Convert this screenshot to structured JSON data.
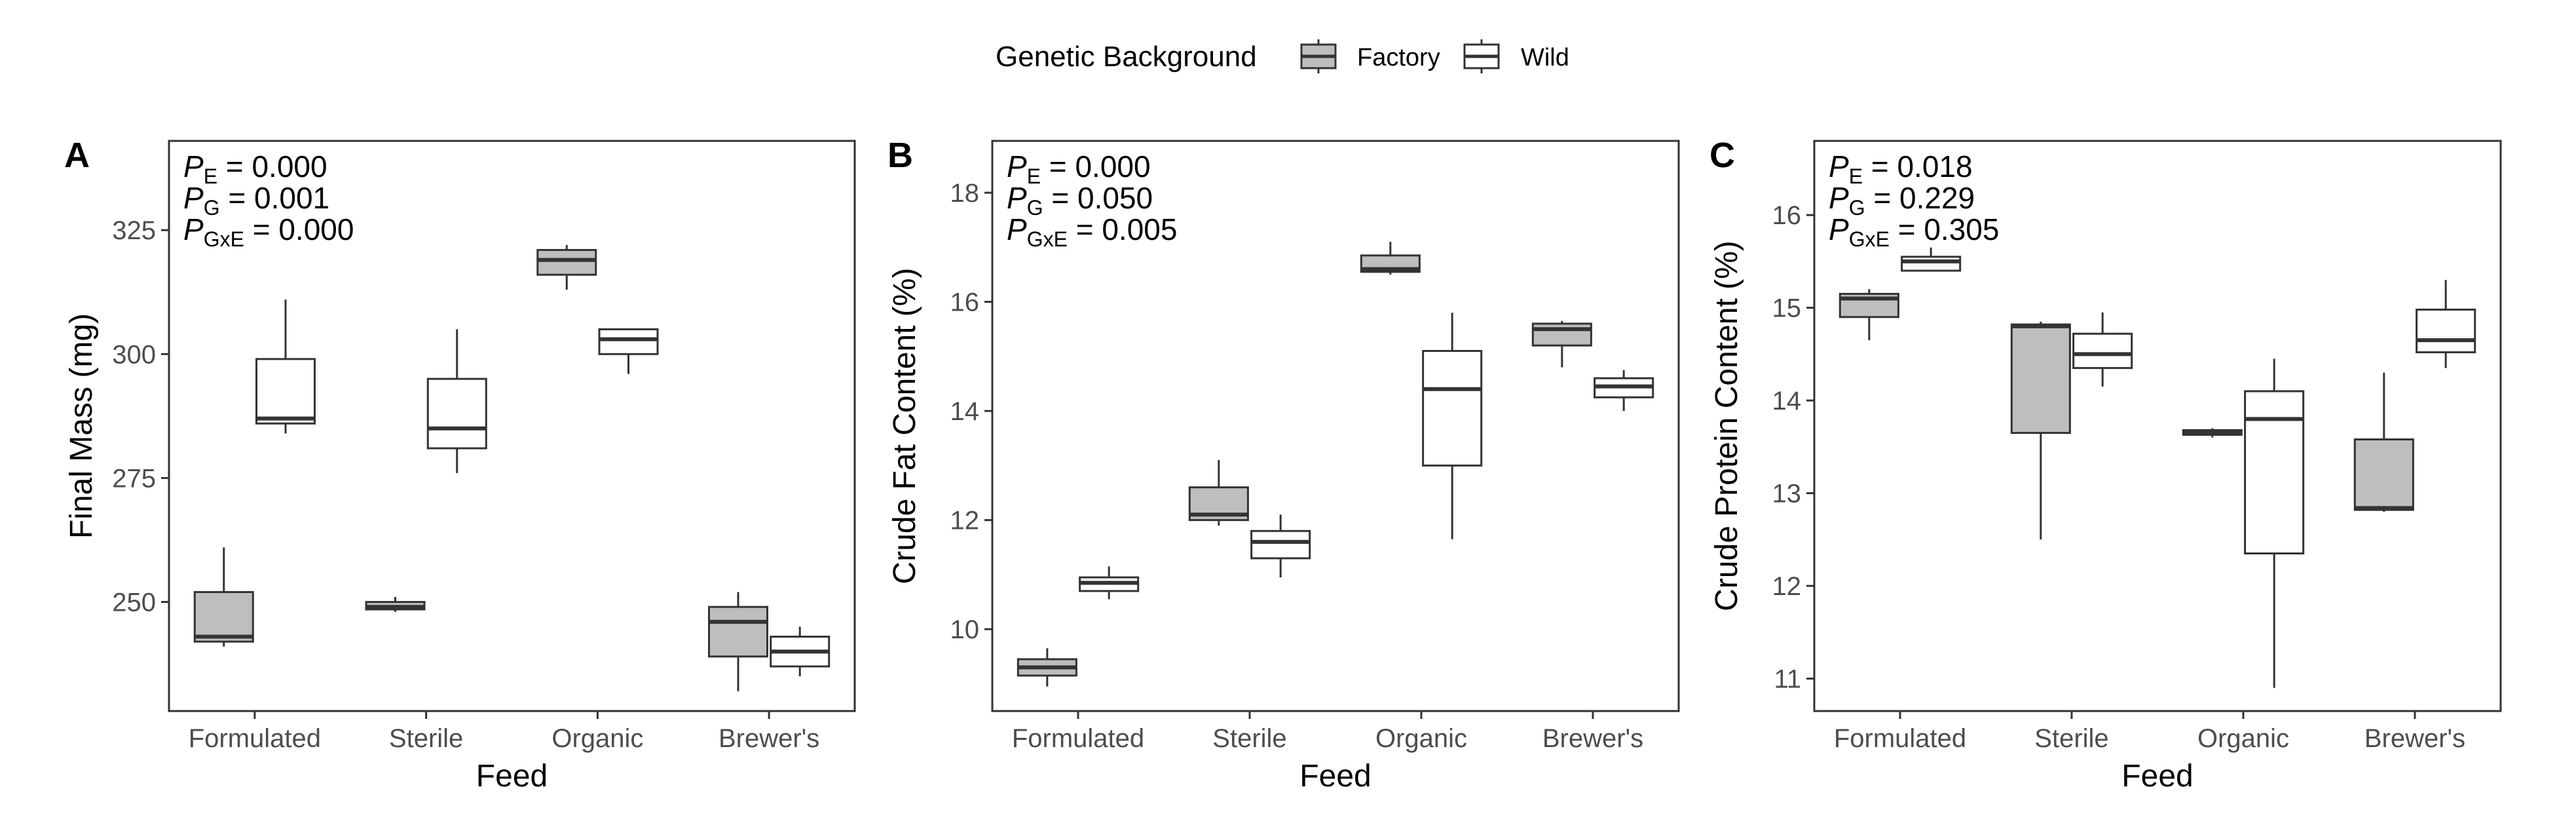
{
  "legend": {
    "title": "Genetic Background",
    "items": [
      {
        "label": "Factory",
        "fill": "#bebebe"
      },
      {
        "label": "Wild",
        "fill": "#ffffff"
      }
    ]
  },
  "chart_data": [
    {
      "type": "box",
      "panel": "A",
      "xlabel": "Feed",
      "ylabel": "Final Mass (mg)",
      "ylim": [
        228,
        343
      ],
      "yticks": [
        250,
        275,
        300,
        325
      ],
      "categories": [
        "Formulated",
        "Sterile",
        "Organic",
        "Brewer's"
      ],
      "pvalues": [
        {
          "p": "P",
          "sub": "E",
          "value": " = 0.000"
        },
        {
          "p": "P",
          "sub": "G",
          "value": " = 0.001"
        },
        {
          "p": "P",
          "sub": "GxE",
          "value": " = 0.000"
        }
      ],
      "series": [
        {
          "name": "Factory",
          "boxes": [
            {
              "min": 241,
              "q1": 242,
              "median": 243,
              "q3": 252,
              "max": 261
            },
            {
              "min": 248,
              "q1": 248.5,
              "median": 249,
              "q3": 250,
              "max": 251
            },
            {
              "min": 313,
              "q1": 316,
              "median": 319,
              "q3": 321,
              "max": 322
            },
            {
              "min": 232,
              "q1": 239,
              "median": 246,
              "q3": 249,
              "max": 252
            }
          ]
        },
        {
          "name": "Wild",
          "boxes": [
            {
              "min": 284,
              "q1": 286,
              "median": 287,
              "q3": 299,
              "max": 311
            },
            {
              "min": 276,
              "q1": 281,
              "median": 285,
              "q3": 295,
              "max": 305
            },
            {
              "min": 296,
              "q1": 300,
              "median": 303,
              "q3": 305,
              "max": 305
            },
            {
              "min": 235,
              "q1": 237,
              "median": 240,
              "q3": 243,
              "max": 245
            }
          ]
        }
      ]
    },
    {
      "type": "box",
      "panel": "B",
      "xlabel": "Feed",
      "ylabel": "Crude Fat Content (%)",
      "ylim": [
        8.5,
        18.95
      ],
      "yticks": [
        10,
        12,
        14,
        16,
        18
      ],
      "categories": [
        "Formulated",
        "Sterile",
        "Organic",
        "Brewer's"
      ],
      "pvalues": [
        {
          "p": "P",
          "sub": "E",
          "value": " = 0.000"
        },
        {
          "p": "P",
          "sub": "G",
          "value": " = 0.050"
        },
        {
          "p": "P",
          "sub": "GxE",
          "value": " = 0.005"
        }
      ],
      "series": [
        {
          "name": "Factory",
          "boxes": [
            {
              "min": 8.95,
              "q1": 9.15,
              "median": 9.3,
              "q3": 9.45,
              "max": 9.65
            },
            {
              "min": 11.9,
              "q1": 12.0,
              "median": 12.1,
              "q3": 12.6,
              "max": 13.1
            },
            {
              "min": 16.5,
              "q1": 16.55,
              "median": 16.6,
              "q3": 16.85,
              "max": 17.1
            },
            {
              "min": 14.8,
              "q1": 15.2,
              "median": 15.5,
              "q3": 15.6,
              "max": 15.65
            }
          ]
        },
        {
          "name": "Wild",
          "boxes": [
            {
              "min": 10.55,
              "q1": 10.7,
              "median": 10.85,
              "q3": 10.95,
              "max": 11.15
            },
            {
              "min": 10.95,
              "q1": 11.3,
              "median": 11.6,
              "q3": 11.8,
              "max": 12.1
            },
            {
              "min": 11.65,
              "q1": 13.0,
              "median": 14.4,
              "q3": 15.1,
              "max": 15.8
            },
            {
              "min": 14.0,
              "q1": 14.25,
              "median": 14.45,
              "q3": 14.6,
              "max": 14.75
            }
          ]
        }
      ]
    },
    {
      "type": "box",
      "panel": "C",
      "xlabel": "Feed",
      "ylabel": "Crude Protein Content (%)",
      "ylim": [
        10.65,
        16.8
      ],
      "yticks": [
        11,
        12,
        13,
        14,
        15,
        16
      ],
      "categories": [
        "Formulated",
        "Sterile",
        "Organic",
        "Brewer's"
      ],
      "pvalues": [
        {
          "p": "P",
          "sub": "E",
          "value": " = 0.018"
        },
        {
          "p": "P",
          "sub": "G",
          "value": " = 0.229"
        },
        {
          "p": "P",
          "sub": "GxE",
          "value": " = 0.305"
        }
      ],
      "series": [
        {
          "name": "Factory",
          "boxes": [
            {
              "min": 14.65,
              "q1": 14.9,
              "median": 15.1,
              "q3": 15.15,
              "max": 15.2
            },
            {
              "min": 12.5,
              "q1": 13.65,
              "median": 14.8,
              "q3": 14.82,
              "max": 14.85
            },
            {
              "min": 13.6,
              "q1": 13.63,
              "median": 13.66,
              "q3": 13.68,
              "max": 13.7
            },
            {
              "min": 12.8,
              "q1": 12.82,
              "median": 12.84,
              "q3": 13.58,
              "max": 14.3
            }
          ]
        },
        {
          "name": "Wild",
          "boxes": [
            {
              "min": 15.4,
              "q1": 15.4,
              "median": 15.5,
              "q3": 15.55,
              "max": 15.65
            },
            {
              "min": 14.15,
              "q1": 14.35,
              "median": 14.5,
              "q3": 14.72,
              "max": 14.95
            },
            {
              "min": 10.9,
              "q1": 12.35,
              "median": 13.8,
              "q3": 14.1,
              "max": 14.45
            },
            {
              "min": 14.35,
              "q1": 14.52,
              "median": 14.65,
              "q3": 14.98,
              "max": 15.3
            }
          ]
        }
      ]
    }
  ]
}
